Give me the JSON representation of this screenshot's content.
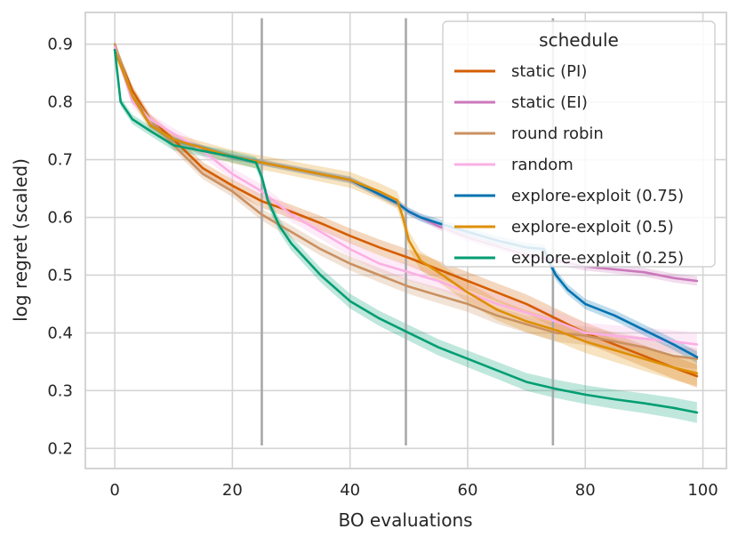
{
  "chart_data": {
    "type": "line",
    "title": "",
    "xlabel": "BO evaluations",
    "ylabel": "log regret (scaled)",
    "xlim": [
      -5,
      104
    ],
    "ylim": [
      0.165,
      0.955
    ],
    "xticks": [
      0,
      20,
      40,
      60,
      80,
      100
    ],
    "yticks": [
      0.2,
      0.3,
      0.4,
      0.5,
      0.6,
      0.7,
      0.8,
      0.9
    ],
    "grid": true,
    "vertical_lines": [
      {
        "x": 25,
        "y_range": [
          0.205,
          0.945
        ]
      },
      {
        "x": 49.5,
        "y_range": [
          0.205,
          0.945
        ]
      },
      {
        "x": 74.5,
        "y_range": [
          0.205,
          0.945
        ]
      }
    ],
    "legend": {
      "title": "schedule",
      "location": "top-right"
    },
    "series": [
      {
        "name": "static (PI)",
        "color": "#d55e00",
        "x": [
          0,
          3,
          6,
          10,
          15,
          20,
          25,
          30,
          35,
          40,
          45,
          50,
          55,
          60,
          65,
          70,
          75,
          80,
          85,
          90,
          95,
          99
        ],
        "y": [
          0.895,
          0.82,
          0.77,
          0.735,
          0.685,
          0.655,
          0.628,
          0.61,
          0.59,
          0.568,
          0.548,
          0.53,
          0.51,
          0.49,
          0.47,
          0.45,
          0.425,
          0.4,
          0.38,
          0.36,
          0.34,
          0.325
        ],
        "band": 0.02
      },
      {
        "name": "static (EI)",
        "color": "#cc78bc",
        "x": [
          0,
          3,
          6,
          10,
          15,
          20,
          25,
          30,
          35,
          40,
          45,
          48,
          50,
          52,
          55,
          60,
          65,
          70,
          75,
          80,
          85,
          90,
          95,
          99
        ],
        "y": [
          0.89,
          0.81,
          0.76,
          0.735,
          0.72,
          0.705,
          0.695,
          0.685,
          0.675,
          0.665,
          0.64,
          0.625,
          0.61,
          0.6,
          0.585,
          0.565,
          0.55,
          0.535,
          0.525,
          0.515,
          0.51,
          0.505,
          0.495,
          0.49
        ],
        "band": 0.008
      },
      {
        "name": "round robin",
        "color": "#ca9161",
        "x": [
          0,
          3,
          6,
          10,
          15,
          20,
          25,
          30,
          35,
          40,
          45,
          50,
          55,
          60,
          65,
          70,
          75,
          80,
          85,
          90,
          95,
          99
        ],
        "y": [
          0.9,
          0.81,
          0.77,
          0.725,
          0.675,
          0.645,
          0.605,
          0.575,
          0.545,
          0.52,
          0.5,
          0.48,
          0.465,
          0.45,
          0.43,
          0.415,
          0.4,
          0.395,
          0.385,
          0.375,
          0.36,
          0.355
        ],
        "band": 0.018
      },
      {
        "name": "random",
        "color": "#fbafe4",
        "x": [
          0,
          3,
          6,
          10,
          15,
          20,
          25,
          30,
          35,
          40,
          45,
          50,
          55,
          60,
          65,
          70,
          75,
          80,
          85,
          90,
          95,
          99
        ],
        "y": [
          0.895,
          0.8,
          0.77,
          0.745,
          0.715,
          0.675,
          0.645,
          0.605,
          0.575,
          0.545,
          0.52,
          0.505,
          0.49,
          0.47,
          0.45,
          0.435,
          0.42,
          0.4,
          0.395,
          0.39,
          0.385,
          0.38
        ],
        "band": 0.02
      },
      {
        "name": "explore-exploit (0.75)",
        "color": "#0173b2",
        "x": [
          0,
          3,
          6,
          10,
          15,
          20,
          25,
          30,
          35,
          40,
          45,
          48,
          50,
          52,
          55,
          60,
          65,
          70,
          73,
          74,
          75,
          77,
          80,
          85,
          90,
          95,
          99
        ],
        "y": [
          0.89,
          0.81,
          0.76,
          0.735,
          0.72,
          0.705,
          0.695,
          0.685,
          0.675,
          0.665,
          0.64,
          0.625,
          0.61,
          0.6,
          0.59,
          0.575,
          0.56,
          0.548,
          0.545,
          0.52,
          0.5,
          0.475,
          0.45,
          0.43,
          0.405,
          0.38,
          0.358
        ],
        "band": 0.01
      },
      {
        "name": "explore-exploit (0.5)",
        "color": "#de8f05",
        "x": [
          0,
          3,
          6,
          10,
          15,
          20,
          25,
          30,
          35,
          40,
          45,
          48,
          49,
          50,
          52,
          55,
          60,
          65,
          70,
          75,
          80,
          85,
          90,
          95,
          99
        ],
        "y": [
          0.89,
          0.81,
          0.76,
          0.735,
          0.72,
          0.705,
          0.695,
          0.685,
          0.675,
          0.665,
          0.645,
          0.63,
          0.6,
          0.56,
          0.525,
          0.505,
          0.47,
          0.44,
          0.42,
          0.405,
          0.385,
          0.37,
          0.355,
          0.34,
          0.33
        ],
        "band": 0.022
      },
      {
        "name": "explore-exploit (0.25)",
        "color": "#029e73",
        "x": [
          0,
          1,
          3,
          6,
          10,
          15,
          20,
          24,
          25,
          26,
          28,
          30,
          35,
          40,
          45,
          50,
          55,
          60,
          65,
          70,
          75,
          80,
          85,
          90,
          95,
          99
        ],
        "y": [
          0.89,
          0.8,
          0.77,
          0.75,
          0.725,
          0.715,
          0.705,
          0.695,
          0.67,
          0.63,
          0.585,
          0.555,
          0.5,
          0.455,
          0.425,
          0.4,
          0.375,
          0.355,
          0.335,
          0.315,
          0.303,
          0.293,
          0.285,
          0.278,
          0.27,
          0.262
        ],
        "band": 0.018
      }
    ]
  }
}
